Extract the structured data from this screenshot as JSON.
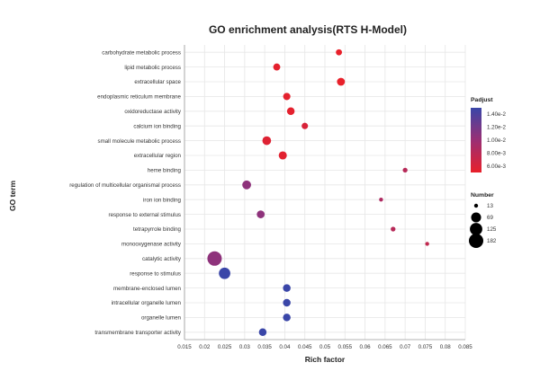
{
  "chart_data": {
    "type": "scatter",
    "title": "GO enrichment analysis(RTS H-Model)",
    "xlabel": "Rich factor",
    "ylabel": "GO term",
    "xlim": [
      0.015,
      0.085
    ],
    "xticks": [
      "0.015",
      "0.02",
      "0.025",
      "0.03",
      "0.035",
      "0.04",
      "0.045",
      "0.05",
      "0.055",
      "0.06",
      "0.065",
      "0.07",
      "0.075",
      "0.08",
      "0.085"
    ],
    "grid": true,
    "legend_placement": "right",
    "color_legend": {
      "title": "Padjust",
      "labels": [
        "1.40e-2",
        "1.20e-2",
        "1.00e-2",
        "8.00e-3",
        "6.00e-3"
      ],
      "values": [
        0.014,
        0.012,
        0.01,
        0.008,
        0.006
      ],
      "low_color": "#e8202a",
      "high_color": "#3a46a8"
    },
    "size_legend": {
      "title": "Number",
      "labels": [
        "13",
        "69",
        "125",
        "182"
      ],
      "values": [
        13,
        69,
        125,
        182
      ]
    },
    "points": [
      {
        "term": "carbohydrate metabolic process",
        "x": 0.0535,
        "number": 20,
        "padjust": 0.006
      },
      {
        "term": "lipid metabolic process",
        "x": 0.038,
        "number": 28,
        "padjust": 0.0062
      },
      {
        "term": "extracellular space",
        "x": 0.054,
        "number": 38,
        "padjust": 0.006
      },
      {
        "term": "endoplasmic reticulum membrane",
        "x": 0.0405,
        "number": 30,
        "padjust": 0.0062
      },
      {
        "term": "oxidoreductase activity",
        "x": 0.0415,
        "number": 34,
        "padjust": 0.0062
      },
      {
        "term": "calcium ion binding",
        "x": 0.045,
        "number": 22,
        "padjust": 0.0068
      },
      {
        "term": "small molecule metabolic process",
        "x": 0.0355,
        "number": 48,
        "padjust": 0.0065
      },
      {
        "term": "extracellular region",
        "x": 0.0395,
        "number": 40,
        "padjust": 0.0063
      },
      {
        "term": "heme binding",
        "x": 0.07,
        "number": 14,
        "padjust": 0.0085
      },
      {
        "term": "regulation of multicellular organismal process",
        "x": 0.0305,
        "number": 50,
        "padjust": 0.0105
      },
      {
        "term": "iron ion binding",
        "x": 0.064,
        "number": 13,
        "padjust": 0.009
      },
      {
        "term": "response to external stimulus",
        "x": 0.034,
        "number": 36,
        "padjust": 0.0105
      },
      {
        "term": "tetrapyrrole binding",
        "x": 0.067,
        "number": 14,
        "padjust": 0.0085
      },
      {
        "term": "monooxygenase activity",
        "x": 0.0755,
        "number": 13,
        "padjust": 0.008
      },
      {
        "term": "catalytic activity",
        "x": 0.0225,
        "number": 182,
        "padjust": 0.0105
      },
      {
        "term": "response to stimulus",
        "x": 0.025,
        "number": 100,
        "padjust": 0.0142
      },
      {
        "term": "membrane-enclosed lumen",
        "x": 0.0405,
        "number": 34,
        "padjust": 0.0142
      },
      {
        "term": "intracellular organelle lumen",
        "x": 0.0405,
        "number": 34,
        "padjust": 0.0142
      },
      {
        "term": "organelle lumen",
        "x": 0.0405,
        "number": 34,
        "padjust": 0.0142
      },
      {
        "term": "transmembrane transporter activity",
        "x": 0.0345,
        "number": 34,
        "padjust": 0.014
      }
    ]
  }
}
